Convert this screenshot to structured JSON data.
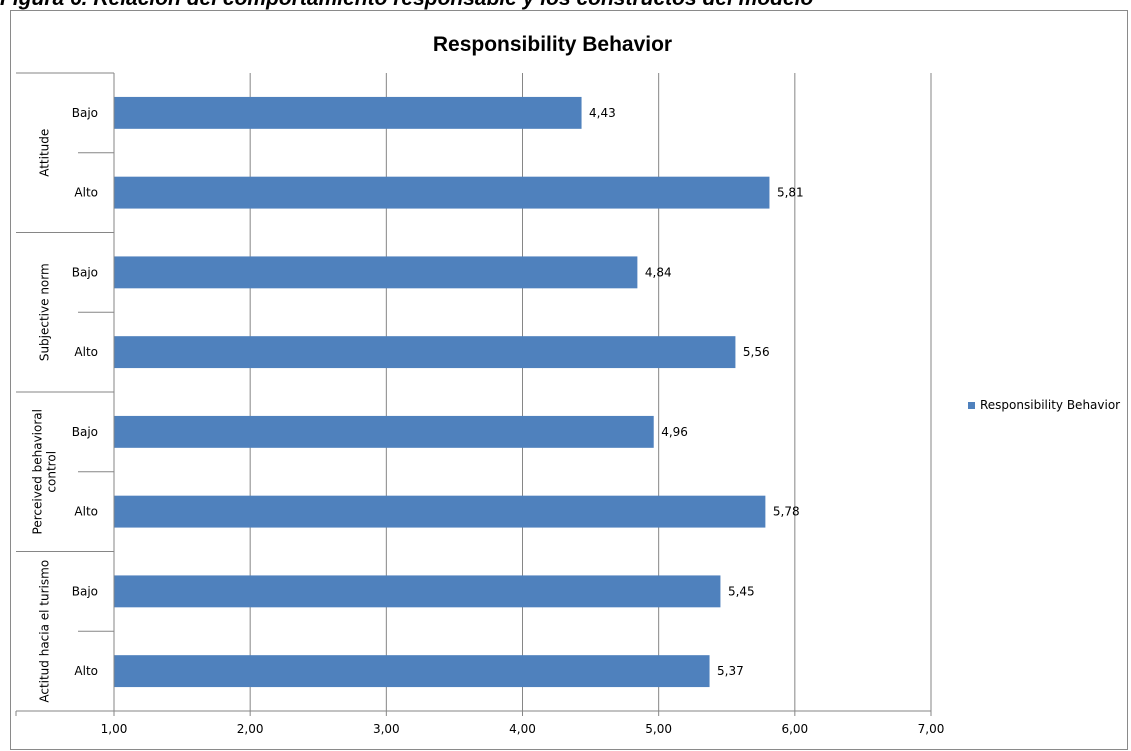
{
  "caption": "Figura 6. Relación del comportamiento responsable y los constructos del modelo",
  "chart_data": {
    "type": "bar",
    "orientation": "horizontal",
    "title": "Responsibility Behavior",
    "groups": [
      {
        "name": "Attitude",
        "categories": [
          "Bajo",
          "Alto"
        ],
        "values": [
          4.43,
          5.81
        ],
        "labels": [
          "4,43",
          "5,81"
        ]
      },
      {
        "name": "Subjective norm",
        "categories": [
          "Bajo",
          "Alto"
        ],
        "values": [
          4.84,
          5.56
        ],
        "labels": [
          "4,84",
          "5,56"
        ]
      },
      {
        "name": "Perceived behavioral control",
        "categories": [
          "Bajo",
          "Alto"
        ],
        "values": [
          4.96,
          5.78
        ],
        "labels": [
          "4,96",
          "5,78"
        ]
      },
      {
        "name": "Actitud hacia el turismo",
        "categories": [
          "Bajo",
          "Alto"
        ],
        "values": [
          5.45,
          5.37
        ],
        "labels": [
          "5,45",
          "5,37"
        ]
      }
    ],
    "series": [
      {
        "name": "Responsibility Behavior",
        "color": "#4F81BD"
      }
    ],
    "xlim": [
      1,
      7
    ],
    "xticks": [
      1,
      2,
      3,
      4,
      5,
      6,
      7
    ],
    "xtick_labels": [
      "1,00",
      "2,00",
      "3,00",
      "4,00",
      "5,00",
      "6,00",
      "7,00"
    ],
    "grid": true,
    "legend_position": "right"
  }
}
